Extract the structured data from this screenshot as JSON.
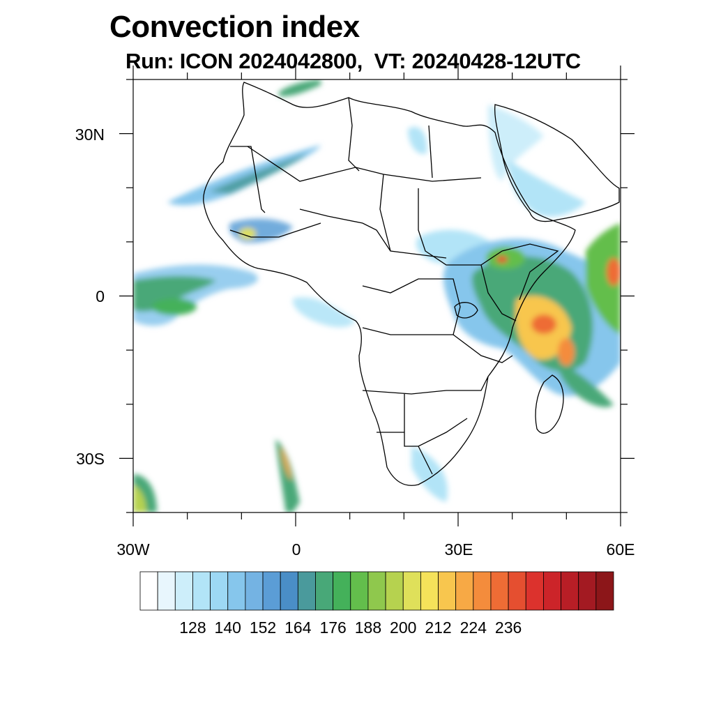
{
  "title": "Convection index",
  "subtitle": "Run: ICON 2024042800,  VT: 20240428-12UTC",
  "axes": {
    "lat_ticks": [
      {
        "label": "30N",
        "value": 30
      },
      {
        "label": "0",
        "value": 0
      },
      {
        "label": "30S",
        "value": -30
      }
    ],
    "lon_ticks": [
      {
        "label": "30W",
        "value": -30
      },
      {
        "label": "0",
        "value": 0
      },
      {
        "label": "30E",
        "value": 30
      },
      {
        "label": "60E",
        "value": 60
      }
    ],
    "lon_range": [
      -30,
      60
    ],
    "lat_range": [
      -40,
      40
    ]
  },
  "colorbar": {
    "labels": [
      "128",
      "140",
      "152",
      "164",
      "176",
      "188",
      "200",
      "212",
      "224",
      "236"
    ],
    "colors": [
      "#ffffff",
      "#e8f6fd",
      "#cdeefa",
      "#b2e4f7",
      "#9dd8f4",
      "#86c6ec",
      "#74b3e3",
      "#5b9dd6",
      "#4a8ec7",
      "#4a9a9c",
      "#48a878",
      "#44b15a",
      "#63be4c",
      "#8fc84d",
      "#b6d24f",
      "#dfe05a",
      "#f5e25a",
      "#f8c64e",
      "#f7a945",
      "#f48c3c",
      "#ee6c35",
      "#e54f30",
      "#dc322d",
      "#cc2429",
      "#b81e26",
      "#a31a22",
      "#8c1619"
    ]
  },
  "map": {
    "region": "Africa",
    "legend_colors": {
      "water": "#ffffff",
      "border": "#000000"
    }
  }
}
